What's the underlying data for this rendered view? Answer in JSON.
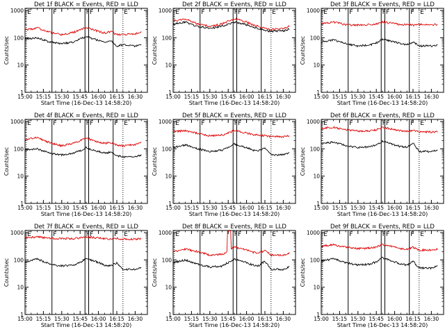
{
  "chart_data": [
    {
      "type": "line",
      "title": "Det 1f BLACK = Events, RED = LLD",
      "xlabel": "Start Time (16-Dec-13 14:58:20)",
      "ylabel": "Counts/sec",
      "yscale": "log",
      "ylim": [
        1,
        1200
      ],
      "xlim": [
        "15:00",
        "16:40"
      ],
      "xticks": [
        "15:00",
        "15:15",
        "15:30",
        "15:45",
        "16:00",
        "16:15",
        "16:30"
      ],
      "yticks": [
        "1",
        "10",
        "100",
        "1000"
      ],
      "series": [
        {
          "color": "#dd0000",
          "x": [
            "15:00",
            "15:10",
            "15:20",
            "15:30",
            "15:40",
            "15:45",
            "15:50",
            "16:00",
            "16:05",
            "16:10",
            "16:15",
            "16:20",
            "16:30",
            "16:35"
          ],
          "values": [
            190,
            230,
            160,
            130,
            160,
            190,
            240,
            170,
            150,
            170,
            130,
            130,
            140,
            160
          ]
        },
        {
          "color": "#000000",
          "x": [
            "15:00",
            "15:10",
            "15:20",
            "15:30",
            "15:40",
            "15:45",
            "15:50",
            "16:00",
            "16:05",
            "16:10",
            "16:15",
            "16:20",
            "16:30",
            "16:35"
          ],
          "values": [
            90,
            100,
            70,
            60,
            70,
            90,
            110,
            80,
            70,
            80,
            50,
            55,
            50,
            60
          ]
        }
      ],
      "markers": [
        {
          "type": "E",
          "x": [
            "15:01",
            "16:20"
          ]
        },
        {
          "type": "F",
          "x": [
            "15:22",
            "15:49",
            "15:52",
            "16:12"
          ]
        }
      ]
    },
    {
      "type": "line",
      "title": "Det 2f BLACK = Events, RED = LLD",
      "xlabel": "Start Time (16-Dec-13 14:58:20)",
      "ylabel": "Counts/sec",
      "yscale": "log",
      "ylim": [
        1,
        1200
      ],
      "xlim": [
        "15:00",
        "16:40"
      ],
      "xticks": [
        "15:00",
        "15:15",
        "15:30",
        "15:45",
        "16:00",
        "16:15",
        "16:30"
      ],
      "yticks": [
        "1",
        "10",
        "100",
        "1000"
      ],
      "series": [
        {
          "color": "#dd0000",
          "x": [
            "15:00",
            "15:10",
            "15:20",
            "15:30",
            "15:40",
            "15:45",
            "15:50",
            "16:00",
            "16:05",
            "16:10",
            "16:15",
            "16:20",
            "16:30",
            "16:35"
          ],
          "values": [
            400,
            500,
            320,
            260,
            320,
            400,
            500,
            380,
            300,
            260,
            220,
            200,
            210,
            260
          ]
        },
        {
          "color": "#000000",
          "x": [
            "15:00",
            "15:10",
            "15:20",
            "15:30",
            "15:40",
            "15:45",
            "15:50",
            "16:00",
            "16:05",
            "16:10",
            "16:15",
            "16:20",
            "16:30",
            "16:35"
          ],
          "values": [
            320,
            380,
            260,
            220,
            260,
            310,
            380,
            300,
            240,
            220,
            180,
            170,
            180,
            210
          ]
        }
      ],
      "markers": [
        {
          "type": "E",
          "x": [
            "15:01",
            "16:20"
          ]
        },
        {
          "type": "F",
          "x": [
            "15:22",
            "15:49",
            "15:52",
            "16:12"
          ]
        }
      ]
    },
    {
      "type": "line",
      "title": "Det 3f BLACK = Events, RED = LLD",
      "xlabel": "Start Time (16-Dec-13 14:58:20)",
      "ylabel": "Counts/sec",
      "yscale": "log",
      "ylim": [
        1,
        1200
      ],
      "xlim": [
        "15:00",
        "16:40"
      ],
      "xticks": [
        "15:00",
        "15:15",
        "15:30",
        "15:45",
        "16:00",
        "16:15",
        "16:30"
      ],
      "yticks": [
        "1",
        "10",
        "100",
        "1000"
      ],
      "series": [
        {
          "color": "#dd0000",
          "x": [
            "15:00",
            "15:10",
            "15:20",
            "15:30",
            "15:40",
            "15:45",
            "15:50",
            "16:00",
            "16:05",
            "16:10",
            "16:15",
            "16:20",
            "16:30",
            "16:35"
          ],
          "values": [
            330,
            380,
            300,
            290,
            300,
            320,
            380,
            330,
            300,
            310,
            290,
            300,
            300,
            310
          ]
        },
        {
          "color": "#000000",
          "x": [
            "15:00",
            "15:10",
            "15:20",
            "15:30",
            "15:40",
            "15:45",
            "15:50",
            "16:00",
            "16:05",
            "16:10",
            "16:15",
            "16:20",
            "16:30",
            "16:35"
          ],
          "values": [
            70,
            85,
            60,
            50,
            55,
            65,
            90,
            70,
            60,
            55,
            70,
            50,
            50,
            55
          ]
        }
      ],
      "markers": [
        {
          "type": "E",
          "x": [
            "15:01",
            "16:20"
          ]
        },
        {
          "type": "F",
          "x": [
            "15:22",
            "15:49",
            "15:52",
            "16:12"
          ]
        }
      ]
    },
    {
      "type": "line",
      "title": "Det 4f BLACK = Events, RED = LLD",
      "xlabel": "Start Time (16-Dec-13 14:58:20)",
      "ylabel": "Counts/sec",
      "yscale": "log",
      "ylim": [
        1,
        1200
      ],
      "xlim": [
        "15:00",
        "16:40"
      ],
      "xticks": [
        "15:00",
        "15:15",
        "15:30",
        "15:45",
        "16:00",
        "16:15",
        "16:30"
      ],
      "yticks": [
        "1",
        "10",
        "100",
        "1000"
      ],
      "series": [
        {
          "color": "#dd0000",
          "x": [
            "15:00",
            "15:10",
            "15:20",
            "15:30",
            "15:40",
            "15:45",
            "15:50",
            "16:00",
            "16:05",
            "16:10",
            "16:15",
            "16:20",
            "16:30",
            "16:35"
          ],
          "values": [
            220,
            260,
            170,
            130,
            160,
            200,
            250,
            180,
            160,
            170,
            140,
            130,
            140,
            170
          ]
        },
        {
          "color": "#000000",
          "x": [
            "15:00",
            "15:10",
            "15:20",
            "15:30",
            "15:40",
            "15:45",
            "15:50",
            "16:00",
            "16:05",
            "16:10",
            "16:15",
            "16:20",
            "16:30",
            "16:35"
          ],
          "values": [
            90,
            100,
            70,
            60,
            70,
            85,
            110,
            80,
            70,
            75,
            55,
            50,
            50,
            60
          ]
        }
      ],
      "markers": [
        {
          "type": "E",
          "x": [
            "15:01",
            "16:20"
          ]
        },
        {
          "type": "F",
          "x": [
            "15:22",
            "15:49",
            "15:52",
            "16:12"
          ]
        }
      ]
    },
    {
      "type": "line",
      "title": "Det 5f BLACK = Events, RED = LLD",
      "xlabel": "Start Time (16-Dec-13 14:58:20)",
      "ylabel": "Counts/sec",
      "yscale": "log",
      "ylim": [
        1,
        1200
      ],
      "xlim": [
        "15:00",
        "16:40"
      ],
      "xticks": [
        "15:00",
        "15:15",
        "15:30",
        "15:45",
        "16:00",
        "16:15",
        "16:30"
      ],
      "yticks": [
        "1",
        "10",
        "100",
        "1000"
      ],
      "series": [
        {
          "color": "#dd0000",
          "x": [
            "15:00",
            "15:10",
            "15:20",
            "15:30",
            "15:40",
            "15:45",
            "15:50",
            "16:00",
            "16:05",
            "16:10",
            "16:15",
            "16:20",
            "16:30",
            "16:35"
          ],
          "values": [
            420,
            470,
            370,
            300,
            320,
            380,
            470,
            380,
            330,
            320,
            300,
            280,
            280,
            300
          ]
        },
        {
          "color": "#000000",
          "x": [
            "15:00",
            "15:10",
            "15:20",
            "15:30",
            "15:40",
            "15:45",
            "15:50",
            "16:00",
            "16:05",
            "16:10",
            "16:15",
            "16:20",
            "16:30",
            "16:35"
          ],
          "values": [
            110,
            140,
            100,
            80,
            90,
            110,
            150,
            110,
            90,
            85,
            110,
            60,
            60,
            70
          ]
        }
      ],
      "markers": [
        {
          "type": "E",
          "x": [
            "15:01",
            "16:20"
          ]
        },
        {
          "type": "F",
          "x": [
            "15:22",
            "15:49",
            "15:52",
            "16:12"
          ]
        }
      ]
    },
    {
      "type": "line",
      "title": "Det 6f BLACK = Events, RED = LLD",
      "xlabel": "Start Time (16-Dec-13 14:58:20)",
      "ylabel": "Counts/sec",
      "yscale": "log",
      "ylim": [
        1,
        1200
      ],
      "xlim": [
        "15:00",
        "16:40"
      ],
      "xticks": [
        "15:00",
        "15:15",
        "15:30",
        "15:45",
        "16:00",
        "16:15",
        "16:30"
      ],
      "yticks": [
        "1",
        "10",
        "100",
        "1000"
      ],
      "series": [
        {
          "color": "#dd0000",
          "x": [
            "15:00",
            "15:10",
            "15:20",
            "15:30",
            "15:40",
            "15:45",
            "15:50",
            "16:00",
            "16:05",
            "16:10",
            "16:15",
            "16:20",
            "16:30",
            "16:35"
          ],
          "values": [
            560,
            620,
            500,
            450,
            460,
            500,
            600,
            520,
            460,
            430,
            480,
            420,
            410,
            430
          ]
        },
        {
          "color": "#000000",
          "x": [
            "15:00",
            "15:10",
            "15:20",
            "15:30",
            "15:40",
            "15:45",
            "15:50",
            "16:00",
            "16:05",
            "16:10",
            "16:15",
            "16:20",
            "16:30",
            "16:35"
          ],
          "values": [
            150,
            180,
            130,
            110,
            120,
            140,
            190,
            140,
            120,
            115,
            160,
            80,
            80,
            90
          ]
        }
      ],
      "markers": [
        {
          "type": "E",
          "x": [
            "15:01",
            "16:20"
          ]
        },
        {
          "type": "F",
          "x": [
            "15:22",
            "15:49",
            "15:52",
            "16:12"
          ]
        }
      ]
    },
    {
      "type": "line",
      "title": "Det 7f BLACK = Events, RED = LLD",
      "xlabel": "Start Time (16-Dec-13 14:58:20)",
      "ylabel": "Counts/sec",
      "yscale": "log",
      "ylim": [
        1,
        1200
      ],
      "xlim": [
        "15:00",
        "16:40"
      ],
      "xticks": [
        "15:00",
        "15:15",
        "15:30",
        "15:45",
        "16:00",
        "16:15",
        "16:30"
      ],
      "yticks": [
        "1",
        "10",
        "100",
        "1000"
      ],
      "series": [
        {
          "color": "#dd0000",
          "x": [
            "15:00",
            "15:10",
            "15:20",
            "15:30",
            "15:40",
            "15:45",
            "15:50",
            "16:00",
            "16:05",
            "16:10",
            "16:15",
            "16:20",
            "16:30",
            "16:35"
          ],
          "values": [
            650,
            700,
            620,
            600,
            610,
            640,
            700,
            640,
            600,
            590,
            620,
            580,
            580,
            600
          ]
        },
        {
          "color": "#000000",
          "x": [
            "15:00",
            "15:10",
            "15:20",
            "15:30",
            "15:40",
            "15:45",
            "15:50",
            "16:00",
            "16:05",
            "16:10",
            "16:15",
            "16:20",
            "16:30",
            "16:35"
          ],
          "values": [
            80,
            110,
            70,
            60,
            65,
            80,
            115,
            80,
            65,
            60,
            80,
            45,
            45,
            55
          ]
        }
      ],
      "markers": [
        {
          "type": "E",
          "x": [
            "15:01",
            "16:20"
          ]
        },
        {
          "type": "F",
          "x": [
            "15:22",
            "15:49",
            "15:52",
            "16:12"
          ]
        }
      ]
    },
    {
      "type": "line",
      "title": "Det 8f BLACK = Events, RED = LLD",
      "xlabel": "Start Time (16-Dec-13 14:58:20)",
      "ylabel": "Counts/sec",
      "yscale": "log",
      "ylim": [
        1,
        1200
      ],
      "xlim": [
        "15:00",
        "16:40"
      ],
      "xticks": [
        "15:00",
        "15:15",
        "15:30",
        "15:45",
        "16:00",
        "16:15",
        "16:30"
      ],
      "yticks": [
        "1",
        "10",
        "100",
        "1000"
      ],
      "series": [
        {
          "color": "#dd0000",
          "x": [
            "15:00",
            "15:10",
            "15:20",
            "15:30",
            "15:40",
            "15:44",
            "15:44",
            "15:47",
            "15:47",
            "15:50",
            "16:00",
            "16:05",
            "16:10",
            "16:15",
            "16:20",
            "16:30",
            "16:35"
          ],
          "values": [
            200,
            250,
            200,
            150,
            160,
            200,
            1200,
            1200,
            250,
            300,
            230,
            190,
            180,
            220,
            150,
            150,
            180
          ]
        },
        {
          "color": "#000000",
          "x": [
            "15:00",
            "15:10",
            "15:20",
            "15:30",
            "15:40",
            "15:45",
            "15:50",
            "16:00",
            "16:05",
            "16:10",
            "16:15",
            "16:20",
            "16:30",
            "16:35"
          ],
          "values": [
            80,
            100,
            70,
            55,
            60,
            80,
            110,
            80,
            65,
            60,
            90,
            45,
            45,
            55
          ]
        }
      ],
      "markers": [
        {
          "type": "E",
          "x": [
            "15:01",
            "16:20"
          ]
        },
        {
          "type": "F",
          "x": [
            "15:22",
            "15:49",
            "15:52",
            "16:12"
          ]
        }
      ]
    },
    {
      "type": "line",
      "title": "Det 9f BLACK = Events, RED = LLD",
      "xlabel": "Start Time (16-Dec-13 14:58:20)",
      "ylabel": "Counts/sec",
      "yscale": "log",
      "ylim": [
        1,
        1200
      ],
      "xlim": [
        "15:00",
        "16:40"
      ],
      "xticks": [
        "15:00",
        "15:15",
        "15:30",
        "15:45",
        "16:00",
        "16:15",
        "16:30"
      ],
      "yticks": [
        "1",
        "10",
        "100",
        "1000"
      ],
      "series": [
        {
          "color": "#dd0000",
          "x": [
            "15:00",
            "15:10",
            "15:20",
            "15:30",
            "15:40",
            "15:45",
            "15:50",
            "16:00",
            "16:05",
            "16:10",
            "16:15",
            "16:20",
            "16:30",
            "16:35"
          ],
          "values": [
            320,
            360,
            290,
            260,
            270,
            300,
            370,
            300,
            260,
            250,
            290,
            230,
            230,
            250
          ]
        },
        {
          "color": "#000000",
          "x": [
            "15:00",
            "15:10",
            "15:20",
            "15:30",
            "15:40",
            "15:45",
            "15:50",
            "16:00",
            "16:05",
            "16:10",
            "16:15",
            "16:20",
            "16:30",
            "16:35"
          ],
          "values": [
            90,
            110,
            80,
            65,
            70,
            85,
            120,
            85,
            70,
            65,
            90,
            50,
            50,
            60
          ]
        }
      ],
      "markers": [
        {
          "type": "E",
          "x": [
            "15:01",
            "16:20"
          ]
        },
        {
          "type": "F",
          "x": [
            "15:22",
            "15:49",
            "15:52",
            "16:12"
          ]
        }
      ]
    }
  ]
}
